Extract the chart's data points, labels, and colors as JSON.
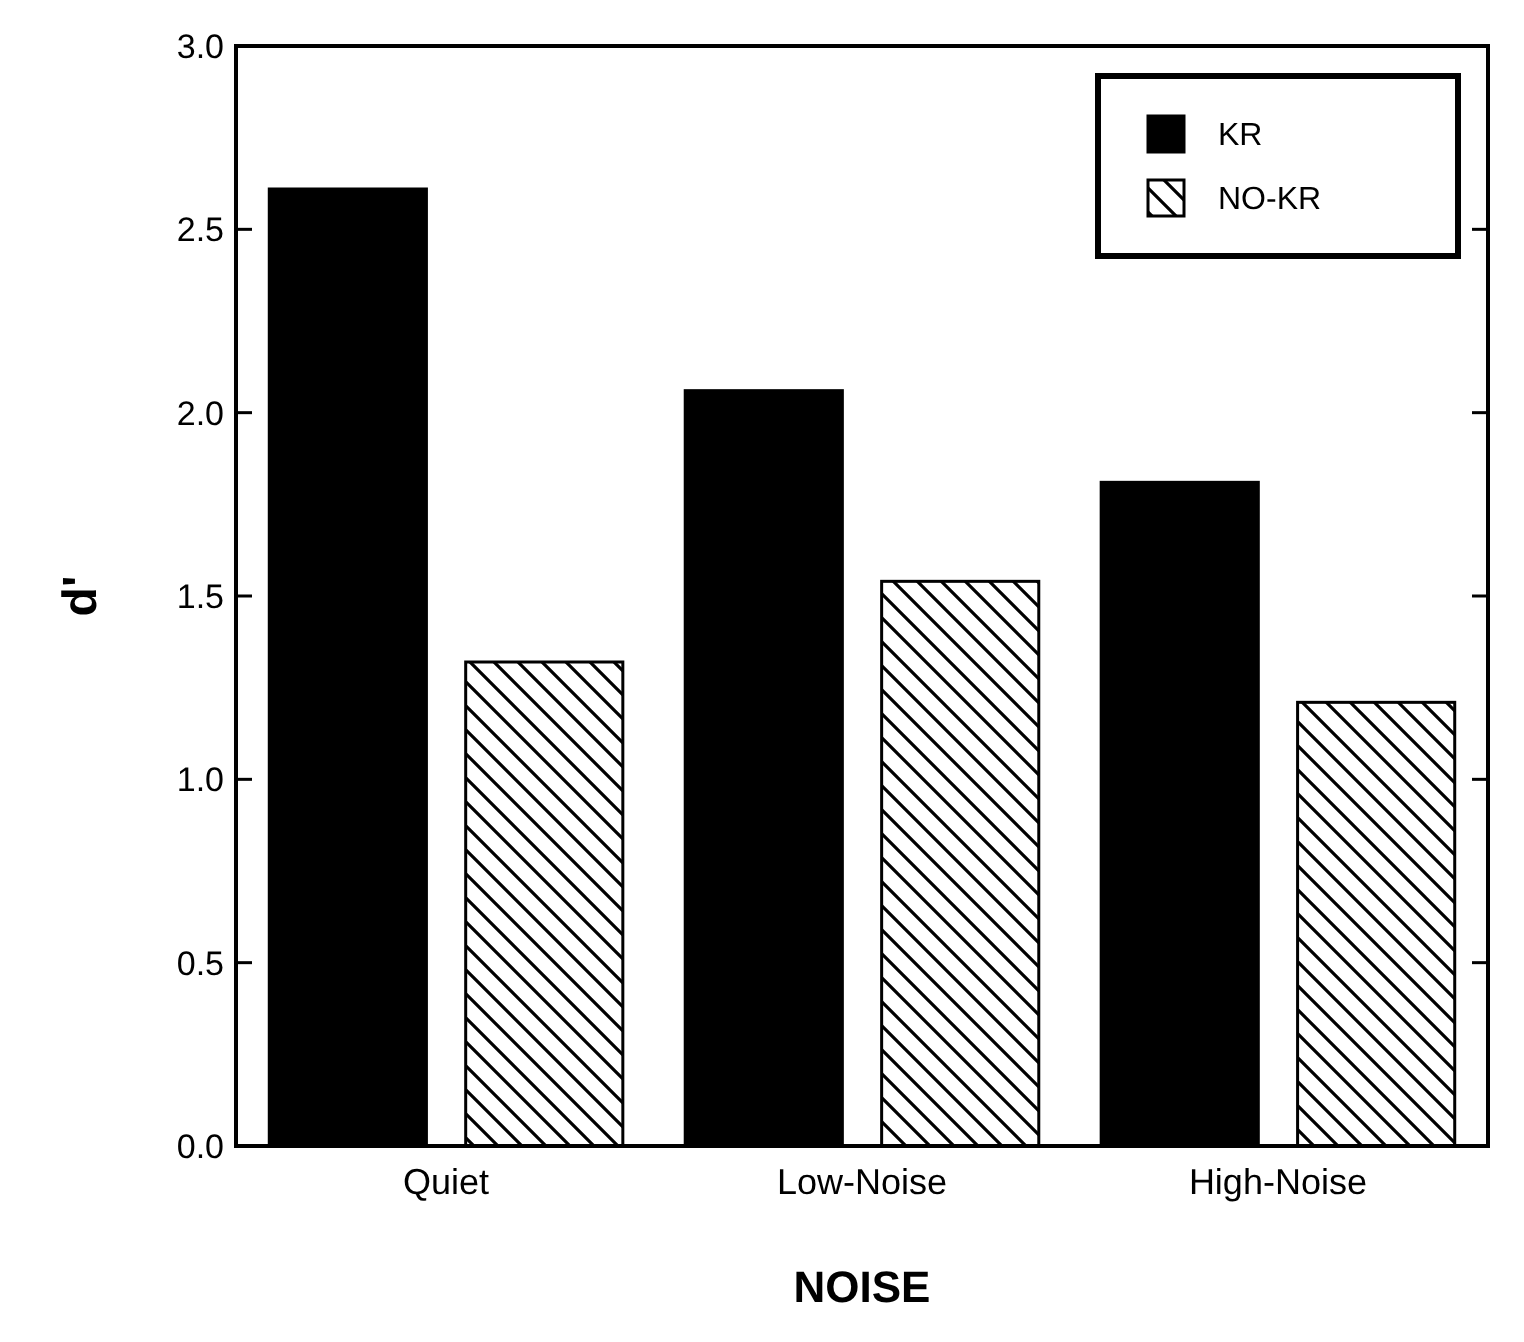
{
  "chart_data": {
    "type": "bar",
    "xlabel": "NOISE",
    "ylabel": "d'",
    "categories": [
      "Quiet",
      "Low-Noise",
      "High-Noise"
    ],
    "series": [
      {
        "name": "KR",
        "color": "#000000",
        "values": [
          2.61,
          2.06,
          1.81
        ]
      },
      {
        "name": "NO-KR",
        "color": "#000000",
        "values": [
          1.32,
          1.54,
          1.21
        ]
      }
    ],
    "ylim": [
      0,
      3
    ],
    "yticks": [
      {
        "value": 0,
        "label": "0.0"
      },
      {
        "value": 0.5,
        "label": "0.5"
      },
      {
        "value": 1,
        "label": "1.0"
      },
      {
        "value": 1.5,
        "label": "1.5"
      },
      {
        "value": 2,
        "label": "2.0"
      },
      {
        "value": 2.5,
        "label": "2.5"
      },
      {
        "value": 3,
        "label": "3.0"
      }
    ],
    "grid": false,
    "legend": "top right"
  }
}
